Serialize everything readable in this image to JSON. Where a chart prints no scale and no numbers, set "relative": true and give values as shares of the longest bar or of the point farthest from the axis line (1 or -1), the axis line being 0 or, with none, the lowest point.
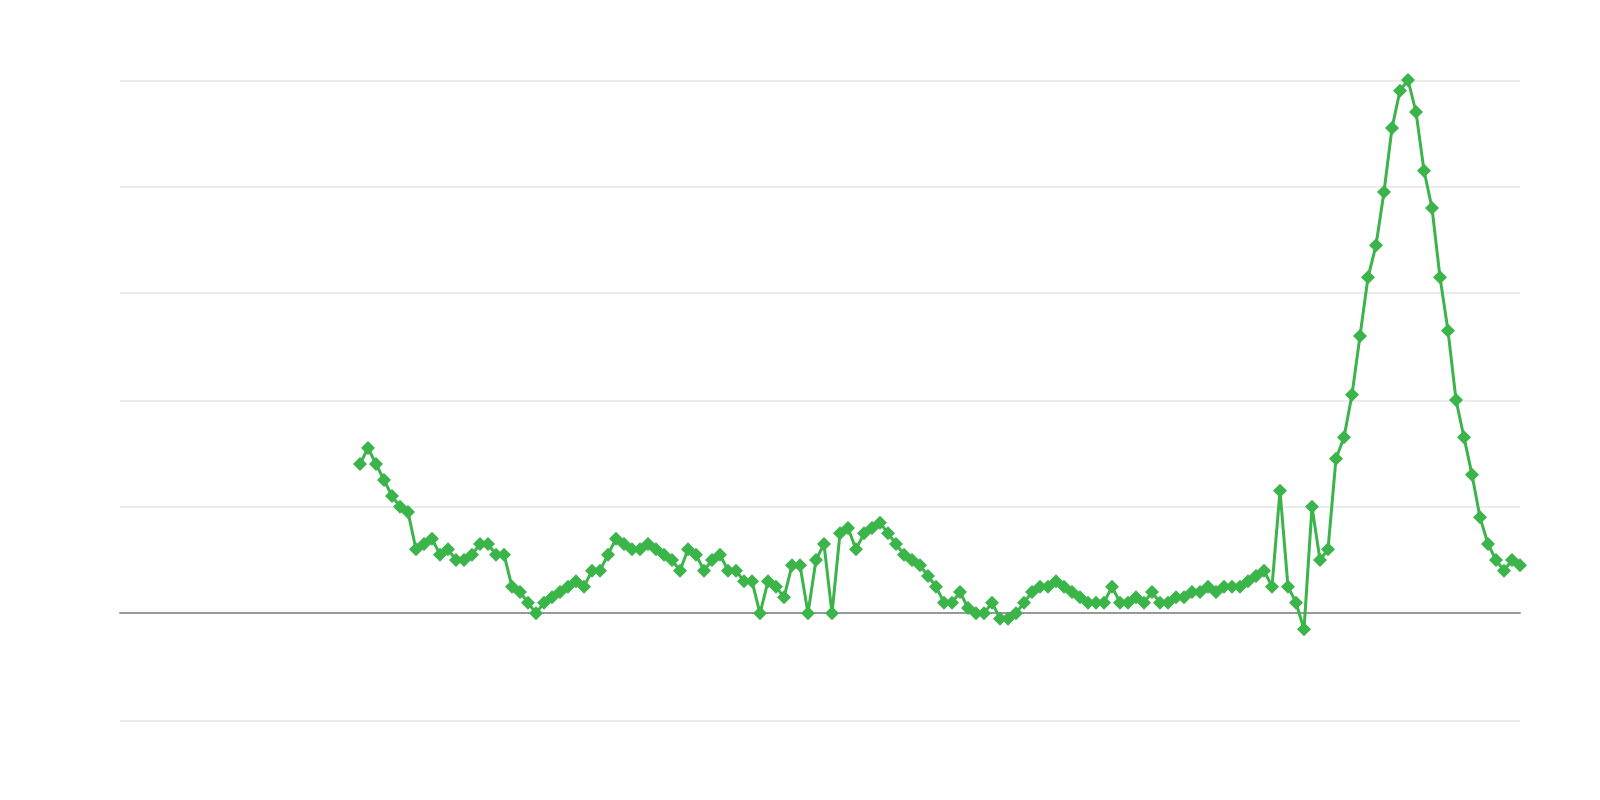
{
  "chart_data": {
    "type": "line",
    "relative": true,
    "grid": "y",
    "marker": "diamond",
    "line_style": "solid",
    "categories": [
      null,
      null,
      null,
      null,
      null,
      null,
      null,
      null,
      null,
      null,
      null,
      null,
      null,
      null,
      null,
      null,
      null,
      null,
      null,
      null,
      null,
      null,
      null,
      null,
      null,
      null,
      null,
      null,
      null,
      null,
      null,
      null,
      null,
      null,
      null,
      null,
      null,
      null,
      null,
      null,
      null,
      null,
      null,
      null,
      null,
      null,
      null,
      null,
      null,
      null,
      null,
      null,
      null,
      null,
      null,
      null,
      null,
      null,
      null,
      null,
      null,
      null,
      null,
      null,
      null,
      null,
      null,
      null,
      null,
      null,
      null,
      null,
      null,
      null,
      null,
      null,
      null,
      null,
      null,
      null,
      null,
      null,
      null,
      null,
      null,
      null,
      null,
      null,
      null,
      null,
      null,
      null,
      null,
      null,
      null,
      null,
      null,
      null,
      null,
      null,
      null,
      null,
      null,
      null,
      null,
      null,
      null,
      null,
      null,
      null,
      null,
      null,
      null,
      null,
      null,
      null,
      null,
      null,
      null,
      null,
      null,
      null,
      null,
      null,
      null,
      null,
      null,
      null,
      null,
      null,
      null,
      null,
      null,
      null,
      null,
      null,
      null,
      null,
      null,
      null,
      null,
      null,
      null,
      null,
      null,
      null,
      null,
      null,
      null,
      null,
      null,
      null,
      null,
      null,
      null,
      null,
      null,
      null,
      null,
      null,
      null,
      null,
      null,
      null,
      null,
      null,
      null,
      null,
      null,
      null,
      null,
      null,
      null,
      null,
      null,
      null
    ],
    "series": [
      {
        "color": "#3bb44a",
        "values": [
          null,
          null,
          null,
          null,
          null,
          null,
          null,
          null,
          null,
          null,
          null,
          null,
          null,
          null,
          null,
          null,
          null,
          null,
          null,
          null,
          null,
          null,
          null,
          null,
          null,
          null,
          null,
          null,
          null,
          null,
          0.28,
          0.31,
          0.28,
          0.25,
          0.22,
          0.2,
          0.19,
          0.12,
          0.13,
          0.14,
          0.11,
          0.12,
          0.1,
          0.1,
          0.11,
          0.13,
          0.13,
          0.11,
          0.11,
          0.05,
          0.04,
          0.02,
          0,
          0.02,
          0.03,
          0.04,
          0.05,
          0.06,
          0.05,
          0.08,
          0.08,
          0.11,
          0.14,
          0.13,
          0.12,
          0.12,
          0.13,
          0.12,
          0.11,
          0.1,
          0.08,
          0.12,
          0.11,
          0.08,
          0.1,
          0.11,
          0.08,
          0.08,
          0.06,
          0.06,
          0,
          0.06,
          0.05,
          0.03,
          0.09,
          0.09,
          0,
          0.1,
          0.13,
          0,
          0.15,
          0.16,
          0.12,
          0.15,
          0.16,
          0.17,
          0.15,
          0.13,
          0.11,
          0.1,
          0.09,
          0.07,
          0.05,
          0.02,
          0.02,
          0.04,
          0.01,
          0,
          0,
          0.02,
          -0.01,
          -0.01,
          0,
          0.02,
          0.04,
          0.05,
          0.05,
          0.06,
          0.05,
          0.04,
          0.03,
          0.02,
          0.02,
          0.02,
          0.05,
          0.02,
          0.02,
          0.03,
          0.02,
          0.04,
          0.02,
          0.02,
          0.03,
          0.03,
          0.04,
          0.04,
          0.05,
          0.04,
          0.05,
          0.05,
          0.05,
          0.06,
          0.07,
          0.08,
          0.05,
          0.23,
          0.05,
          0.02,
          -0.03,
          0.2,
          0.1,
          0.12,
          0.29,
          0.33,
          0.41,
          0.52,
          0.63,
          0.69,
          0.79,
          0.91,
          0.98,
          1,
          0.94,
          0.83,
          0.76,
          0.63,
          0.53,
          0.4,
          0.33,
          0.26,
          0.18,
          0.13,
          0.1,
          0.08,
          0.1,
          0.09
        ]
      }
    ]
  }
}
